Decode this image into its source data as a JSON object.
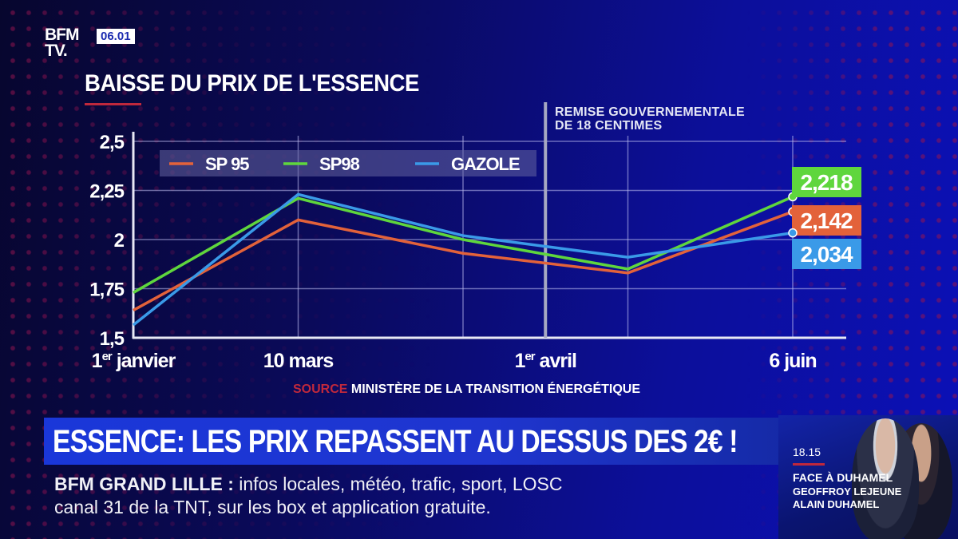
{
  "channel": {
    "logo_line1": "BFM",
    "logo_line2": "TV.",
    "clock": "06.01"
  },
  "header": {
    "title": "BAISSE DU PRIX DE L'ESSENCE"
  },
  "annotation": {
    "line1": "REMISE GOUVERNEMENTALE",
    "line2": "DE 18 CENTIMES"
  },
  "colors": {
    "sp95": "#e3623a",
    "sp98": "#5fd63d",
    "gazole": "#3a9ae8",
    "accent_red": "#c0283c",
    "ticker_blue": "#1a37d9"
  },
  "chart_data": {
    "type": "line",
    "title": "BAISSE DU PRIX DE L'ESSENCE",
    "xlabel": "",
    "ylabel": "",
    "x": [
      "1er janvier",
      "10 mars",
      "",
      "1er avril",
      "",
      "6 juin"
    ],
    "x_positions": [
      0,
      1,
      2,
      2.5,
      3,
      4
    ],
    "x_tick_labels": [
      {
        "label_main": "1",
        "label_sup": "er",
        "label_rest": " janvier",
        "at": 0
      },
      {
        "label_main": "10 mars",
        "label_sup": "",
        "label_rest": "",
        "at": 1
      },
      {
        "label_main": "1",
        "label_sup": "er",
        "label_rest": " avril",
        "at": 2.5
      },
      {
        "label_main": "6 juin",
        "label_sup": "",
        "label_rest": "",
        "at": 4
      }
    ],
    "y_ticks": [
      "2,5",
      "2,25",
      "2",
      "1,75",
      "1,5"
    ],
    "y_tick_values": [
      2.5,
      2.25,
      2.0,
      1.75,
      1.5
    ],
    "ylim": [
      1.5,
      2.5
    ],
    "xlim": [
      0,
      4.3
    ],
    "grid": true,
    "legend_position": "top-left",
    "marker_line": {
      "at": 2.5,
      "label": "REMISE GOUVERNEMENTALE DE 18 CENTIMES"
    },
    "series": [
      {
        "name": "SP 95",
        "key": "sp95",
        "x": [
          0,
          1,
          2,
          3,
          4
        ],
        "values": [
          1.64,
          2.1,
          1.93,
          1.83,
          2.142
        ],
        "end_label": "2,142"
      },
      {
        "name": "SP98",
        "key": "sp98",
        "x": [
          0,
          1,
          2,
          3,
          4
        ],
        "values": [
          1.73,
          2.21,
          2.0,
          1.85,
          2.218
        ],
        "end_label": "2,218"
      },
      {
        "name": "GAZOLE",
        "key": "gazole",
        "x": [
          0,
          1,
          2,
          3,
          4
        ],
        "values": [
          1.565,
          2.23,
          2.02,
          1.91,
          2.034
        ],
        "end_label": "2,034"
      }
    ],
    "source_label": "SOURCE",
    "source_text": "MINISTÈRE DE LA TRANSITION ÉNERGÉTIQUE"
  },
  "ticker": {
    "headline": "ESSENCE: LES PRIX REPASSENT AU DESSUS DES 2€ !",
    "sub_bold": "BFM GRAND LILLE",
    "sub_sep": " : ",
    "sub_line1": "infos locales, météo, trafic, sport, LOSC",
    "sub_line2": "canal 31 de la TNT, sur les box et application gratuite."
  },
  "promo": {
    "time": "18.15",
    "show": "FACE À DUHAMEL",
    "guest1": "GEOFFROY LEJEUNE",
    "guest2": "ALAIN DUHAMEL"
  }
}
